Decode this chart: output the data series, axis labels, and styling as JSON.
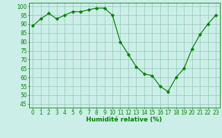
{
  "x": [
    0,
    1,
    2,
    3,
    4,
    5,
    6,
    7,
    8,
    9,
    10,
    11,
    12,
    13,
    14,
    15,
    16,
    17,
    18,
    19,
    20,
    21,
    22,
    23
  ],
  "y": [
    89,
    93,
    96,
    93,
    95,
    97,
    97,
    98,
    99,
    99,
    95,
    80,
    73,
    66,
    62,
    61,
    55,
    52,
    60,
    65,
    76,
    84,
    90,
    95
  ],
  "line_color": "#008000",
  "marker": "D",
  "marker_size": 2.5,
  "bg_color": "#cceee8",
  "grid_color": "#99ccbb",
  "xlabel": "Humidité relative (%)",
  "xlabel_color": "#008000",
  "yticks": [
    45,
    50,
    55,
    60,
    65,
    70,
    75,
    80,
    85,
    90,
    95,
    100
  ],
  "xticks": [
    0,
    1,
    2,
    3,
    4,
    5,
    6,
    7,
    8,
    9,
    10,
    11,
    12,
    13,
    14,
    15,
    16,
    17,
    18,
    19,
    20,
    21,
    22,
    23
  ],
  "ylim": [
    43,
    102
  ],
  "xlim": [
    -0.5,
    23.5
  ],
  "tick_fontsize": 5.5,
  "xlabel_fontsize": 6.5
}
